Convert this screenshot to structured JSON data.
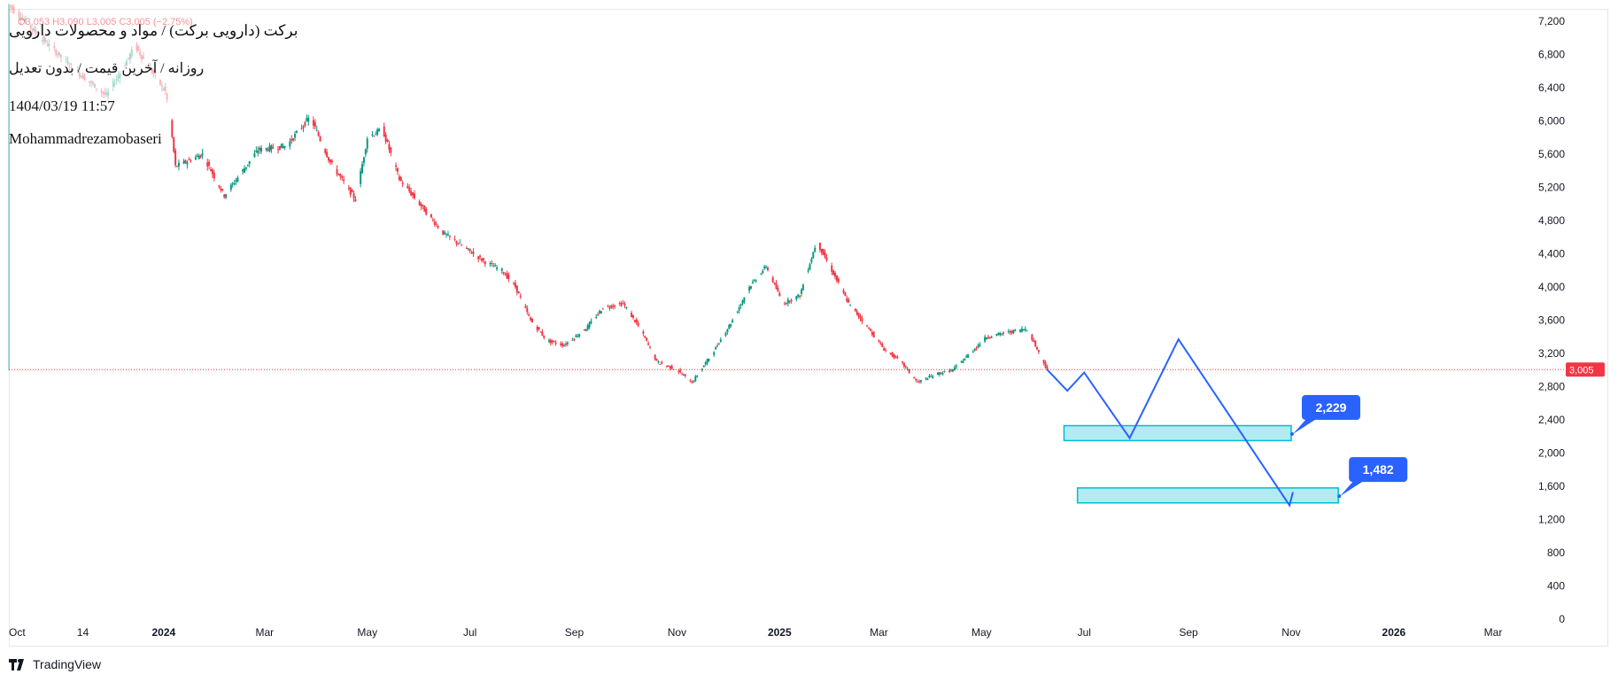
{
  "legend": {
    "title": "برکت (دارویی برکت) / مواد و محصولات دارویی",
    "subtitle": "روزانه / آخرین قیمت / بدون تعدیل",
    "datetime": "1404/03/19 11:57",
    "author": "Mohammadrezamobaseri",
    "ohlc_fragment": "O3,053  H3,090  L3,005  C3,005  (−2.75%)"
  },
  "branding": {
    "label": "TradingView"
  },
  "colors": {
    "up": "#089981",
    "down": "#f23645",
    "projection": "#2962ff",
    "zone_fill": "#b2ebf2",
    "zone_border": "#00bcd4",
    "price_line": "#f23645",
    "axis_text": "#131722",
    "border": "#e6e6e6"
  },
  "chart_data": {
    "type": "candlestick",
    "y_axis": {
      "ticks": [
        0,
        400,
        800,
        1200,
        1600,
        2000,
        2400,
        2800,
        3200,
        3600,
        4000,
        4400,
        4800,
        5200,
        5600,
        6000,
        6400,
        6800,
        7200
      ],
      "range": [
        0,
        7400
      ],
      "side": "right"
    },
    "x_axis": {
      "ticks": [
        {
          "label": "Oct",
          "date": "2023-10-01",
          "bold": false
        },
        {
          "label": "14",
          "date": "2023-11-14",
          "bold": false
        },
        {
          "label": "2024",
          "date": "2024-01-01",
          "bold": true
        },
        {
          "label": "Mar",
          "date": "2024-03-01",
          "bold": false
        },
        {
          "label": "May",
          "date": "2024-05-01",
          "bold": false
        },
        {
          "label": "Jul",
          "date": "2024-07-01",
          "bold": false
        },
        {
          "label": "Sep",
          "date": "2024-09-01",
          "bold": false
        },
        {
          "label": "Nov",
          "date": "2024-11-01",
          "bold": false
        },
        {
          "label": "2025",
          "date": "2025-01-01",
          "bold": true
        },
        {
          "label": "Mar",
          "date": "2025-03-01",
          "bold": false
        },
        {
          "label": "May",
          "date": "2025-05-01",
          "bold": false
        },
        {
          "label": "Jul",
          "date": "2025-07-01",
          "bold": false
        },
        {
          "label": "Sep",
          "date": "2025-09-01",
          "bold": false
        },
        {
          "label": "Nov",
          "date": "2025-11-01",
          "bold": false
        },
        {
          "label": "2026",
          "date": "2026-01-01",
          "bold": true
        },
        {
          "label": "Mar",
          "date": "2026-03-01",
          "bold": false
        }
      ]
    },
    "last_price": {
      "value": 3005,
      "label": "3,005"
    },
    "price_path": [
      [
        "2023-10-01",
        7400
      ],
      [
        "2023-10-20",
        7000
      ],
      [
        "2023-11-10",
        6600
      ],
      [
        "2023-11-28",
        6300
      ],
      [
        "2023-12-15",
        6900
      ],
      [
        "2024-01-02",
        6350
      ],
      [
        "2024-01-04",
        6150
      ],
      [
        "2024-01-08",
        5450
      ],
      [
        "2024-01-24",
        5600
      ],
      [
        "2024-02-06",
        5100
      ],
      [
        "2024-02-26",
        5650
      ],
      [
        "2024-03-14",
        5700
      ],
      [
        "2024-03-28",
        6050
      ],
      [
        "2024-04-09",
        5500
      ],
      [
        "2024-04-24",
        5050
      ],
      [
        "2024-05-01",
        5800
      ],
      [
        "2024-05-10",
        5900
      ],
      [
        "2024-05-20",
        5300
      ],
      [
        "2024-06-01",
        5000
      ],
      [
        "2024-06-15",
        4650
      ],
      [
        "2024-06-26",
        4500
      ],
      [
        "2024-07-10",
        4300
      ],
      [
        "2024-07-20",
        4200
      ],
      [
        "2024-07-28",
        4000
      ],
      [
        "2024-08-06",
        3600
      ],
      [
        "2024-08-16",
        3350
      ],
      [
        "2024-08-26",
        3300
      ],
      [
        "2024-09-08",
        3500
      ],
      [
        "2024-09-18",
        3750
      ],
      [
        "2024-09-30",
        3800
      ],
      [
        "2024-10-10",
        3500
      ],
      [
        "2024-10-20",
        3100
      ],
      [
        "2024-11-01",
        3000
      ],
      [
        "2024-11-10",
        2850
      ],
      [
        "2024-11-22",
        3200
      ],
      [
        "2024-12-04",
        3600
      ],
      [
        "2024-12-14",
        4000
      ],
      [
        "2024-12-24",
        4250
      ],
      [
        "2025-01-03",
        3800
      ],
      [
        "2025-01-13",
        3900
      ],
      [
        "2025-01-23",
        4550
      ],
      [
        "2025-02-01",
        4200
      ],
      [
        "2025-02-11",
        3800
      ],
      [
        "2025-02-21",
        3550
      ],
      [
        "2025-03-04",
        3250
      ],
      [
        "2025-03-14",
        3100
      ],
      [
        "2025-03-24",
        2850
      ],
      [
        "2025-04-04",
        2950
      ],
      [
        "2025-04-14",
        3000
      ],
      [
        "2025-04-24",
        3200
      ],
      [
        "2025-05-04",
        3400
      ],
      [
        "2025-05-16",
        3450
      ],
      [
        "2025-05-28",
        3500
      ],
      [
        "2025-06-09",
        3005
      ]
    ],
    "projection": {
      "points": [
        [
          "2025-06-09",
          3005
        ],
        [
          "2025-06-21",
          2750
        ],
        [
          "2025-07-01",
          2970
        ],
        [
          "2025-07-28",
          2180
        ],
        [
          "2025-08-26",
          3370
        ],
        [
          "2025-10-31",
          1370
        ],
        [
          "2025-11-02",
          1530
        ]
      ]
    },
    "target_zones": [
      {
        "label": "2,229",
        "from": "2025-06-19",
        "to": "2025-11-01",
        "low": 2150,
        "high": 2330,
        "anchor": [
          "2025-11-01",
          2229
        ]
      },
      {
        "label": "1,482",
        "from": "2025-06-27",
        "to": "2025-11-29",
        "low": 1400,
        "high": 1580,
        "anchor": [
          "2025-11-29",
          1482
        ]
      }
    ]
  }
}
